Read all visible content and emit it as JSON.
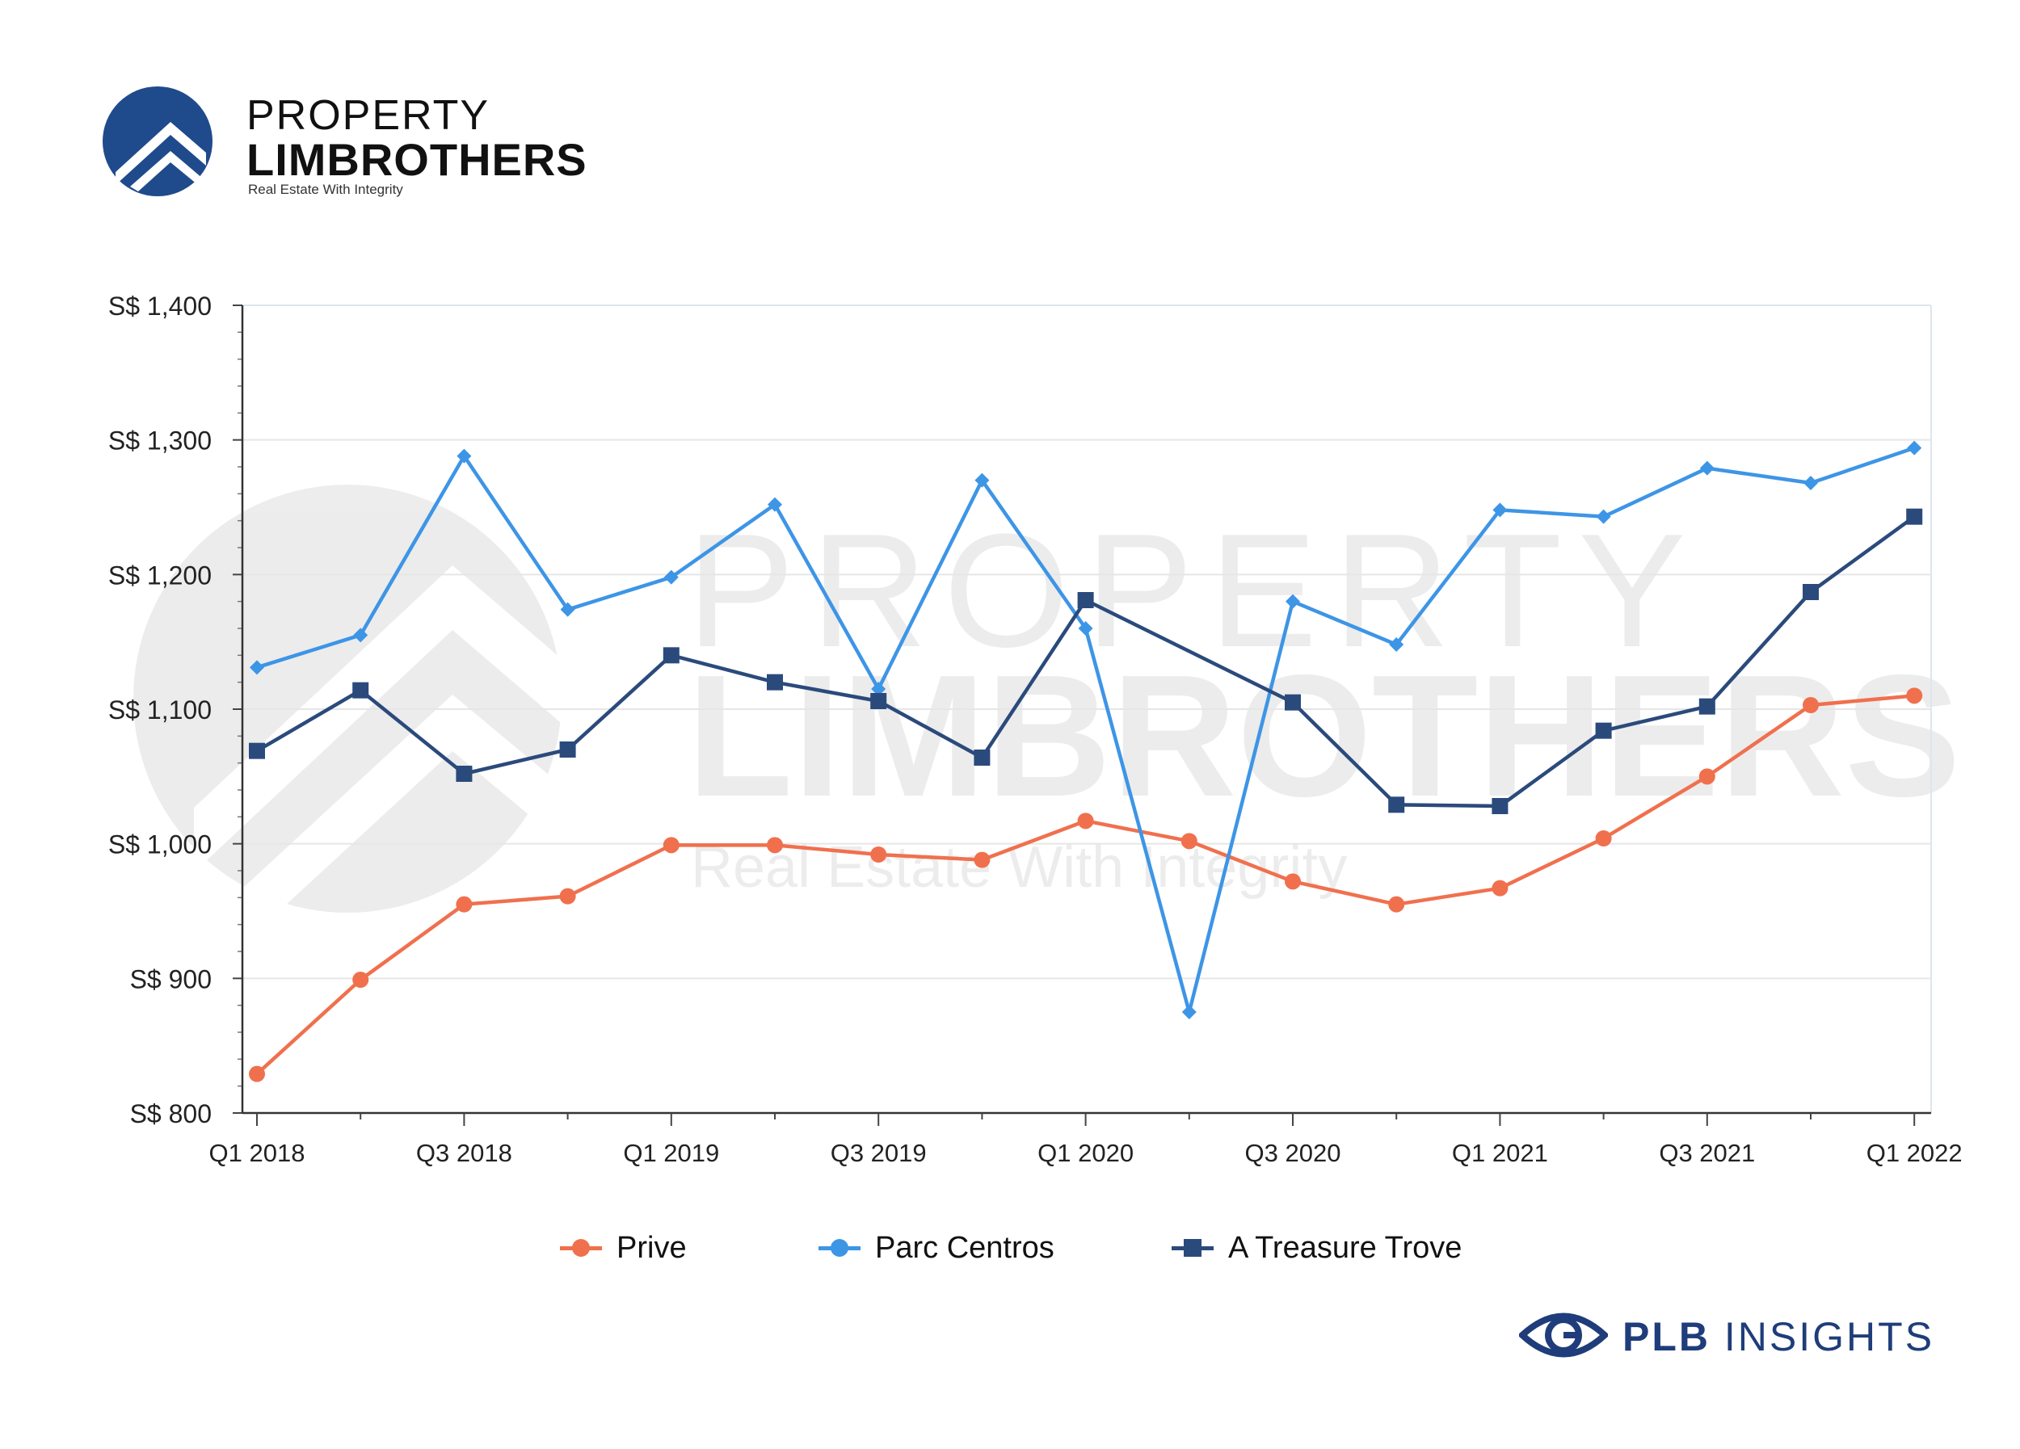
{
  "brand": {
    "name_line1": "PROPERTY",
    "name_line2": "LIMBROTHERS",
    "tagline": "Real Estate With Integrity"
  },
  "watermark": {
    "line1": "PROPERTY",
    "line2": "LIMBROTHERS",
    "line3": "Real Estate With Integrity"
  },
  "footer": {
    "brand_bold": "PLB",
    "brand_light": "INSIGHTS"
  },
  "colors": {
    "prive": "#f0704e",
    "parc_centros": "#3d95e6",
    "treasure_trove": "#2b4a7c",
    "brand_navy": "#1f4b8c"
  },
  "chart_data": {
    "type": "line",
    "x": [
      "Q1 2018",
      "Q2 2018",
      "Q3 2018",
      "Q4 2018",
      "Q1 2019",
      "Q2 2019",
      "Q3 2019",
      "Q4 2019",
      "Q1 2020",
      "Q2 2020",
      "Q3 2020",
      "Q4 2020",
      "Q1 2021",
      "Q2 2021",
      "Q3 2021",
      "Q4 2021",
      "Q1 2022"
    ],
    "x_tick_labels": [
      "Q1 2018",
      "Q3 2018",
      "Q1 2019",
      "Q3 2019",
      "Q1 2020",
      "Q3 2020",
      "Q1 2021",
      "Q3 2021",
      "Q1 2022"
    ],
    "y_tick_labels": [
      "S$ 800",
      "S$ 900",
      "S$ 1,000",
      "S$ 1,100",
      "S$ 1,200",
      "S$ 1,300",
      "S$ 1,400"
    ],
    "ylim": [
      800,
      1400
    ],
    "grid": true,
    "legend_position": "bottom",
    "series": [
      {
        "name": "Prive",
        "color": "#f0704e",
        "marker": "circle",
        "values": [
          829,
          899,
          955,
          961,
          999,
          999,
          992,
          988,
          1017,
          1002,
          972,
          955,
          967,
          1004,
          1050,
          1103,
          1110
        ]
      },
      {
        "name": "Parc Centros",
        "color": "#3d95e6",
        "marker": "diamond",
        "values": [
          1131,
          1155,
          1288,
          1174,
          1198,
          1252,
          1115,
          1270,
          1160,
          875,
          1180,
          1148,
          1248,
          1243,
          1279,
          1268,
          1294
        ]
      },
      {
        "name": "A Treasure Trove",
        "color": "#2b4a7c",
        "marker": "square",
        "values": [
          1069,
          1114,
          1052,
          1070,
          1140,
          1120,
          1106,
          1064,
          1181,
          null,
          1105,
          1029,
          1028,
          1084,
          1102,
          1187,
          1243
        ]
      }
    ]
  }
}
